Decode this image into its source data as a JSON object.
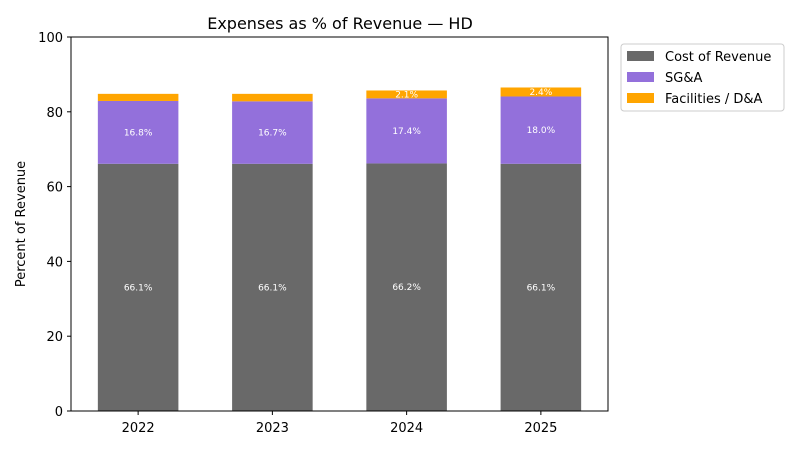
{
  "chart_data": {
    "type": "bar",
    "stacked": true,
    "title": "Expenses as % of Revenue — HD",
    "xlabel": "",
    "ylabel": "Percent of Revenue",
    "ylim": [
      0,
      100
    ],
    "yticks": [
      0,
      20,
      40,
      60,
      80,
      100
    ],
    "categories": [
      "2022",
      "2023",
      "2024",
      "2025"
    ],
    "series": [
      {
        "name": "Cost of Revenue",
        "color": "#696969",
        "values": [
          66.1,
          66.1,
          66.2,
          66.1
        ],
        "labels": [
          "66.1%",
          "66.1%",
          "66.2%",
          "66.1%"
        ]
      },
      {
        "name": "SG&A",
        "color": "#9370DB",
        "values": [
          16.8,
          16.7,
          17.4,
          18.0
        ],
        "labels": [
          "16.8%",
          "16.7%",
          "17.4%",
          "18.0%"
        ]
      },
      {
        "name": "Facilities / D&A",
        "color": "#FFA500",
        "values": [
          1.9,
          2.0,
          2.1,
          2.4
        ],
        "labels": [
          "",
          "",
          "2.1%",
          "2.4%"
        ]
      }
    ],
    "legend_position": "upper right outside"
  }
}
